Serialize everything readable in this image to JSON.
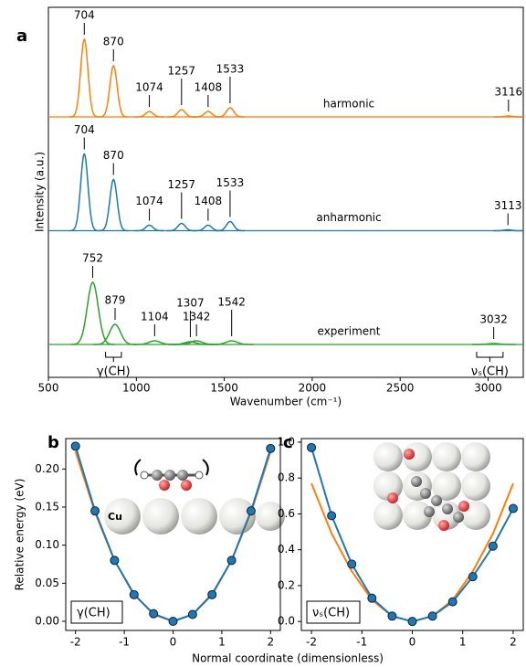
{
  "chart_data": [
    {
      "type": "spectrum",
      "label": "a",
      "xlabel": "Wavenumber (cm⁻¹)",
      "ylabel": "Intensity (a.u.)",
      "xlim": [
        500,
        3200
      ],
      "xticks": [
        500,
        1000,
        1500,
        2000,
        2500,
        3000
      ],
      "series": [
        {
          "name": "harmonic",
          "color": "#ff7f0e",
          "peaks": [
            704,
            870,
            1074,
            1257,
            1408,
            1533,
            3116
          ],
          "heights": [
            85,
            56,
            6,
            8,
            6,
            10,
            1
          ]
        },
        {
          "name": "anharmonic",
          "color": "#1f77b4",
          "peaks": [
            704,
            870,
            1074,
            1257,
            1408,
            1533,
            3113
          ],
          "heights": [
            84,
            56,
            6,
            8,
            6,
            10,
            1
          ]
        },
        {
          "name": "experiment",
          "color": "#2ca02c",
          "peaks": [
            752,
            879,
            1104,
            1307,
            1342,
            1542,
            3032
          ],
          "heights": [
            68,
            22,
            4,
            3,
            4,
            4,
            1
          ]
        }
      ],
      "annotations": [
        {
          "text": "γ(CH)",
          "x": [
            825,
            915
          ]
        },
        {
          "text": "νₛ(CH)",
          "x": [
            2935,
            3085
          ]
        }
      ]
    },
    {
      "type": "line",
      "label": "b",
      "annotation": "γ(CH)",
      "inset_label": "Cu",
      "xlabel": "Normal coordinate (dimensionless)",
      "ylabel": "Relative energy (eV)",
      "x": [
        -2,
        -1.6,
        -1.2,
        -0.8,
        -0.4,
        0,
        0.4,
        0.8,
        1.2,
        1.6,
        2
      ],
      "xlim": [
        -2.2,
        2.2
      ],
      "xticks": [
        -2,
        -1,
        0,
        1,
        2
      ],
      "ylim": [
        -0.012,
        0.24
      ],
      "yticks": [
        {
          "value": 0,
          "label": "0.00"
        },
        0.05,
        {
          "value": 0.1,
          "label": "0.10"
        },
        0.15,
        {
          "value": 0.2,
          "label": "0.20"
        }
      ],
      "series": [
        {
          "color": "#ff7f0e",
          "values": [
            0.223,
            0.143,
            0.08,
            0.036,
            0.009,
            0,
            0.009,
            0.036,
            0.08,
            0.143,
            0.223
          ]
        },
        {
          "color": "#1f77b4",
          "values": [
            0.23,
            0.145,
            0.08,
            0.035,
            0.01,
            0,
            0.009,
            0.035,
            0.08,
            0.145,
            0.227
          ],
          "marker": true
        }
      ]
    },
    {
      "type": "line",
      "label": "c",
      "annotation": "νₛ(CH)",
      "x": [
        -2,
        -1.6,
        -1.2,
        -0.8,
        -0.4,
        0,
        0.4,
        0.8,
        1.2,
        1.6,
        2
      ],
      "xlim": [
        -2.2,
        2.2
      ],
      "xticks": [
        -2,
        -1,
        0,
        1,
        2
      ],
      "ylim": [
        -0.05,
        1.02
      ],
      "yticks": [
        {
          "value": 0,
          "label": "0.0"
        },
        0.2,
        0.4,
        0.6,
        0.8,
        {
          "value": 1,
          "label": "1.0"
        }
      ],
      "series": [
        {
          "color": "#ff7f0e",
          "values": [
            0.77,
            0.49,
            0.28,
            0.12,
            0.03,
            0,
            0.03,
            0.12,
            0.28,
            0.49,
            0.77
          ]
        },
        {
          "color": "#1f77b4",
          "values": [
            0.97,
            0.59,
            0.32,
            0.13,
            0.03,
            0,
            0.03,
            0.11,
            0.25,
            0.42,
            0.63
          ],
          "marker": true
        }
      ]
    }
  ]
}
